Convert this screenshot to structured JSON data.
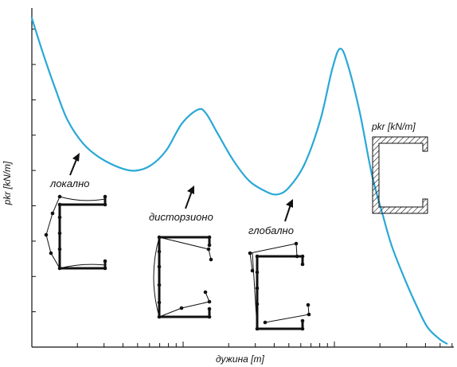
{
  "chart_data": {
    "type": "line",
    "title": "",
    "xlabel": "дужина [m]",
    "ylabel": "pkr [kN/m]",
    "x_scale": "log",
    "grid": false,
    "legend": "none",
    "series": [
      {
        "color": "#29a8d6",
        "points": [
          [
            0.0,
            0.97
          ],
          [
            0.03,
            0.86
          ],
          [
            0.06,
            0.76
          ],
          [
            0.09,
            0.67
          ],
          [
            0.13,
            0.6
          ],
          [
            0.17,
            0.56
          ],
          [
            0.22,
            0.53
          ],
          [
            0.26,
            0.52
          ],
          [
            0.3,
            0.535
          ],
          [
            0.34,
            0.58
          ],
          [
            0.38,
            0.66
          ],
          [
            0.42,
            0.7
          ],
          [
            0.44,
            0.69
          ],
          [
            0.47,
            0.63
          ],
          [
            0.51,
            0.55
          ],
          [
            0.55,
            0.49
          ],
          [
            0.59,
            0.46
          ],
          [
            0.62,
            0.45
          ],
          [
            0.65,
            0.47
          ],
          [
            0.69,
            0.54
          ],
          [
            0.73,
            0.67
          ],
          [
            0.76,
            0.82
          ],
          [
            0.78,
            0.88
          ],
          [
            0.8,
            0.83
          ],
          [
            0.83,
            0.69
          ],
          [
            0.86,
            0.51
          ],
          [
            0.89,
            0.38
          ],
          [
            0.91,
            0.3
          ],
          [
            0.94,
            0.21
          ],
          [
            0.97,
            0.13
          ],
          [
            1.0,
            0.06
          ],
          [
            1.03,
            0.025
          ],
          [
            1.05,
            0.01
          ]
        ]
      }
    ],
    "annotations": [
      {
        "text": "локално"
      },
      {
        "text": "дисторзионо"
      },
      {
        "text": "глобално"
      },
      {
        "text": "pkr [kN/m]"
      }
    ]
  },
  "colors": {
    "curve": "#29a8d6",
    "ink": "#111111"
  }
}
